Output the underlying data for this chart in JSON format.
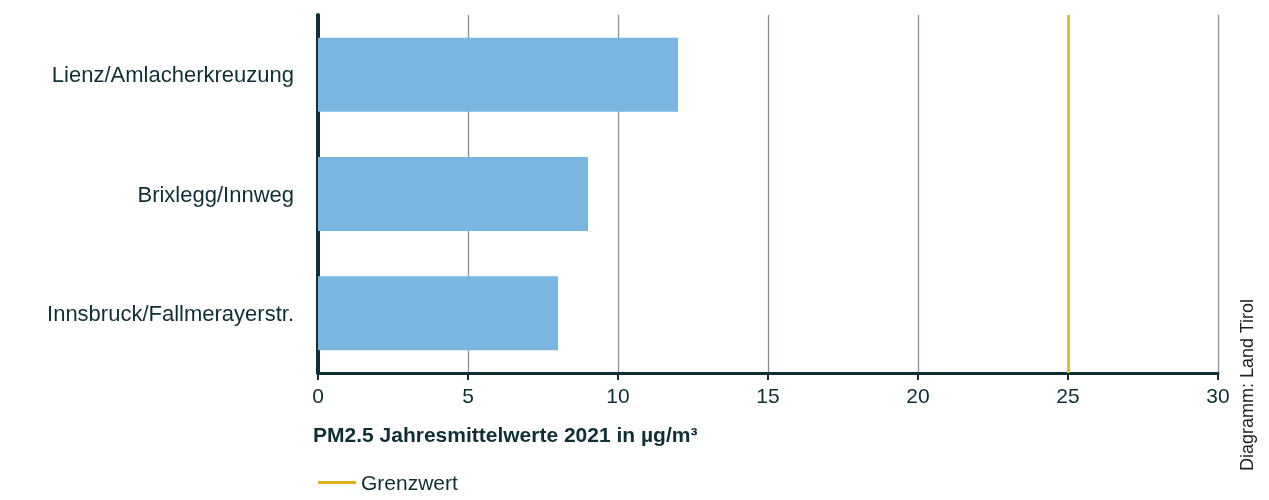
{
  "chart_data": {
    "type": "bar",
    "orientation": "horizontal",
    "categories": [
      "Lienz/Amlacherkreuzung",
      "Brixlegg/Innweg",
      "Innsbruck/Fallmerayerstr."
    ],
    "values": [
      12,
      9,
      8
    ],
    "color": "#7ab6e0",
    "xlabel": "PM2.5 Jahresmittelwerte 2021 in µg/m³",
    "xlim": [
      0,
      30
    ],
    "xticks": [
      0,
      5,
      10,
      15,
      20,
      25,
      30
    ],
    "grid": "x",
    "legend": "bottom left",
    "ref_lines": [
      {
        "axis": "x",
        "value": 25,
        "label": "Grenzwert",
        "color": "#e2b21e"
      }
    ],
    "annotations": [
      "Diagramm: Land Tirol"
    ]
  }
}
